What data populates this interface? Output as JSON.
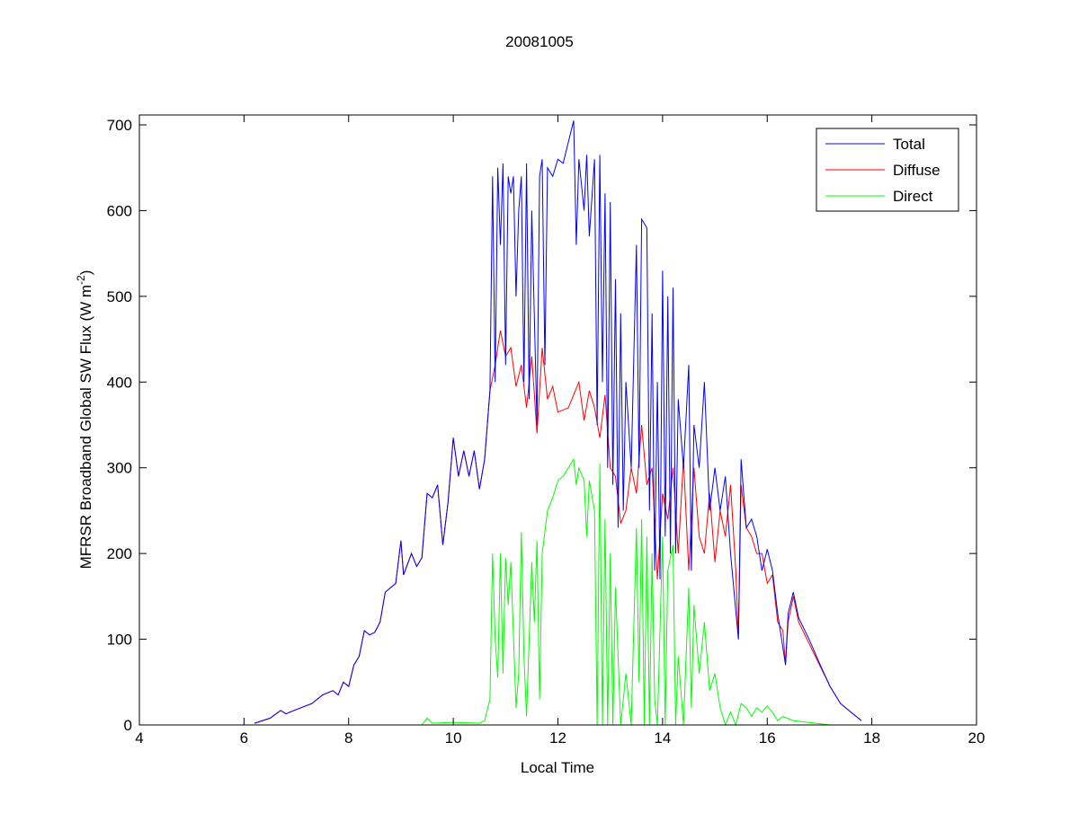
{
  "chart_data": {
    "type": "line",
    "title": "20081005",
    "xlabel": "Local Time",
    "ylabel": {
      "main": "MFRSR Broadband Global SW Flux (W m",
      "sup": "-2",
      "end": ")"
    },
    "xlim": [
      4,
      20
    ],
    "ylim": [
      0,
      700
    ],
    "xticks": [
      4,
      6,
      8,
      10,
      12,
      14,
      16,
      18,
      20
    ],
    "yticks": [
      0,
      100,
      200,
      300,
      400,
      500,
      600,
      700
    ],
    "grid": false,
    "legend_position": "top-right",
    "series": [
      {
        "name": "Total",
        "color": "#0000ff",
        "points": [
          [
            6.2,
            2
          ],
          [
            6.5,
            8
          ],
          [
            6.7,
            17
          ],
          [
            6.8,
            13
          ],
          [
            7,
            18
          ],
          [
            7.3,
            25
          ],
          [
            7.5,
            35
          ],
          [
            7.7,
            40
          ],
          [
            7.8,
            35
          ],
          [
            7.9,
            50
          ],
          [
            8,
            45
          ],
          [
            8.1,
            70
          ],
          [
            8.2,
            80
          ],
          [
            8.3,
            110
          ],
          [
            8.4,
            105
          ],
          [
            8.5,
            108
          ],
          [
            8.6,
            120
          ],
          [
            8.7,
            155
          ],
          [
            8.8,
            160
          ],
          [
            8.9,
            165
          ],
          [
            9,
            215
          ],
          [
            9.05,
            175
          ],
          [
            9.2,
            200
          ],
          [
            9.3,
            185
          ],
          [
            9.4,
            195
          ],
          [
            9.5,
            270
          ],
          [
            9.6,
            265
          ],
          [
            9.7,
            280
          ],
          [
            9.8,
            210
          ],
          [
            9.9,
            260
          ],
          [
            10,
            335
          ],
          [
            10.1,
            290
          ],
          [
            10.2,
            320
          ],
          [
            10.3,
            290
          ],
          [
            10.4,
            320
          ],
          [
            10.5,
            275
          ],
          [
            10.6,
            310
          ],
          [
            10.7,
            390
          ],
          [
            10.75,
            640
          ],
          [
            10.8,
            400
          ],
          [
            10.85,
            650
          ],
          [
            10.9,
            560
          ],
          [
            10.95,
            655
          ],
          [
            11,
            420
          ],
          [
            11.05,
            640
          ],
          [
            11.1,
            620
          ],
          [
            11.15,
            640
          ],
          [
            11.2,
            500
          ],
          [
            11.25,
            600
          ],
          [
            11.3,
            640
          ],
          [
            11.35,
            400
          ],
          [
            11.4,
            655
          ],
          [
            11.45,
            380
          ],
          [
            11.5,
            600
          ],
          [
            11.6,
            350
          ],
          [
            11.65,
            640
          ],
          [
            11.7,
            660
          ],
          [
            11.75,
            420
          ],
          [
            11.8,
            650
          ],
          [
            11.9,
            640
          ],
          [
            12,
            660
          ],
          [
            12.1,
            655
          ],
          [
            12.2,
            680
          ],
          [
            12.3,
            705
          ],
          [
            12.35,
            560
          ],
          [
            12.4,
            660
          ],
          [
            12.5,
            600
          ],
          [
            12.55,
            665
          ],
          [
            12.6,
            570
          ],
          [
            12.7,
            660
          ],
          [
            12.75,
            350
          ],
          [
            12.8,
            665
          ],
          [
            12.85,
            400
          ],
          [
            12.9,
            620
          ],
          [
            12.95,
            300
          ],
          [
            13,
            610
          ],
          [
            13.05,
            280
          ],
          [
            13.1,
            520
          ],
          [
            13.15,
            230
          ],
          [
            13.2,
            480
          ],
          [
            13.25,
            250
          ],
          [
            13.3,
            400
          ],
          [
            13.4,
            300
          ],
          [
            13.5,
            560
          ],
          [
            13.55,
            300
          ],
          [
            13.6,
            590
          ],
          [
            13.7,
            580
          ],
          [
            13.75,
            250
          ],
          [
            13.8,
            480
          ],
          [
            13.85,
            180
          ],
          [
            13.9,
            400
          ],
          [
            13.95,
            170
          ],
          [
            14,
            530
          ],
          [
            14.05,
            220
          ],
          [
            14.1,
            500
          ],
          [
            14.15,
            200
          ],
          [
            14.2,
            510
          ],
          [
            14.25,
            200
          ],
          [
            14.3,
            380
          ],
          [
            14.4,
            300
          ],
          [
            14.5,
            420
          ],
          [
            14.55,
            180
          ],
          [
            14.6,
            350
          ],
          [
            14.7,
            300
          ],
          [
            14.8,
            400
          ],
          [
            14.9,
            250
          ],
          [
            15,
            300
          ],
          [
            15.1,
            250
          ],
          [
            15.2,
            290
          ],
          [
            15.3,
            200
          ],
          [
            15.45,
            100
          ],
          [
            15.5,
            310
          ],
          [
            15.6,
            230
          ],
          [
            15.7,
            240
          ],
          [
            15.8,
            220
          ],
          [
            15.9,
            180
          ],
          [
            16,
            205
          ],
          [
            16.1,
            180
          ],
          [
            16.2,
            130
          ],
          [
            16.35,
            70
          ],
          [
            16.4,
            130
          ],
          [
            16.5,
            155
          ],
          [
            16.6,
            125
          ],
          [
            16.8,
            100
          ],
          [
            17,
            72
          ],
          [
            17.2,
            45
          ],
          [
            17.4,
            25
          ],
          [
            17.6,
            15
          ],
          [
            17.8,
            5
          ]
        ]
      },
      {
        "name": "Diffuse",
        "color": "#ff0000",
        "points": [
          [
            6.2,
            2
          ],
          [
            6.5,
            8
          ],
          [
            6.7,
            17
          ],
          [
            6.8,
            13
          ],
          [
            7,
            18
          ],
          [
            7.3,
            25
          ],
          [
            7.5,
            35
          ],
          [
            7.7,
            40
          ],
          [
            7.8,
            35
          ],
          [
            7.9,
            50
          ],
          [
            8,
            45
          ],
          [
            8.1,
            70
          ],
          [
            8.2,
            80
          ],
          [
            8.3,
            110
          ],
          [
            8.4,
            105
          ],
          [
            8.5,
            108
          ],
          [
            8.6,
            120
          ],
          [
            8.7,
            155
          ],
          [
            8.8,
            160
          ],
          [
            8.9,
            165
          ],
          [
            9,
            215
          ],
          [
            9.05,
            175
          ],
          [
            9.2,
            200
          ],
          [
            9.3,
            185
          ],
          [
            9.4,
            195
          ],
          [
            9.5,
            270
          ],
          [
            9.6,
            265
          ],
          [
            9.7,
            280
          ],
          [
            9.8,
            210
          ],
          [
            9.9,
            260
          ],
          [
            10,
            335
          ],
          [
            10.1,
            290
          ],
          [
            10.2,
            320
          ],
          [
            10.3,
            290
          ],
          [
            10.4,
            320
          ],
          [
            10.5,
            275
          ],
          [
            10.6,
            310
          ],
          [
            10.7,
            390
          ],
          [
            10.8,
            420
          ],
          [
            10.9,
            460
          ],
          [
            11,
            430
          ],
          [
            11.1,
            440
          ],
          [
            11.2,
            395
          ],
          [
            11.3,
            420
          ],
          [
            11.4,
            370
          ],
          [
            11.5,
            430
          ],
          [
            11.6,
            340
          ],
          [
            11.7,
            440
          ],
          [
            11.8,
            380
          ],
          [
            11.9,
            395
          ],
          [
            12,
            365
          ],
          [
            12.2,
            370
          ],
          [
            12.4,
            400
          ],
          [
            12.5,
            355
          ],
          [
            12.6,
            390
          ],
          [
            12.7,
            370
          ],
          [
            12.8,
            335
          ],
          [
            12.9,
            385
          ],
          [
            13,
            300
          ],
          [
            13.1,
            290
          ],
          [
            13.2,
            235
          ],
          [
            13.3,
            250
          ],
          [
            13.4,
            300
          ],
          [
            13.5,
            270
          ],
          [
            13.6,
            350
          ],
          [
            13.7,
            280
          ],
          [
            13.8,
            300
          ],
          [
            13.9,
            170
          ],
          [
            14,
            270
          ],
          [
            14.1,
            240
          ],
          [
            14.2,
            300
          ],
          [
            14.3,
            200
          ],
          [
            14.4,
            310
          ],
          [
            14.5,
            180
          ],
          [
            14.6,
            300
          ],
          [
            14.7,
            220
          ],
          [
            14.8,
            200
          ],
          [
            14.9,
            270
          ],
          [
            15,
            190
          ],
          [
            15.1,
            250
          ],
          [
            15.2,
            220
          ],
          [
            15.3,
            280
          ],
          [
            15.4,
            180
          ],
          [
            15.45,
            100
          ],
          [
            15.5,
            280
          ],
          [
            15.6,
            230
          ],
          [
            15.7,
            220
          ],
          [
            15.8,
            200
          ],
          [
            15.9,
            200
          ],
          [
            16,
            165
          ],
          [
            16.1,
            175
          ],
          [
            16.2,
            120
          ],
          [
            16.3,
            110
          ],
          [
            16.35,
            70
          ],
          [
            16.4,
            120
          ],
          [
            16.5,
            150
          ],
          [
            16.6,
            120
          ],
          [
            16.8,
            95
          ],
          [
            17,
            70
          ],
          [
            17.2,
            45
          ],
          [
            17.4,
            25
          ],
          [
            17.6,
            15
          ],
          [
            17.8,
            5
          ]
        ]
      },
      {
        "name": "Direct",
        "color": "#00ff00",
        "points": [
          [
            6.2,
            0
          ],
          [
            9.4,
            0
          ],
          [
            9.5,
            8
          ],
          [
            9.6,
            2
          ],
          [
            10,
            3
          ],
          [
            10.5,
            2
          ],
          [
            10.6,
            5
          ],
          [
            10.7,
            30
          ],
          [
            10.75,
            200
          ],
          [
            10.8,
            100
          ],
          [
            10.85,
            55
          ],
          [
            10.9,
            200
          ],
          [
            10.95,
            60
          ],
          [
            11,
            195
          ],
          [
            11.05,
            140
          ],
          [
            11.1,
            190
          ],
          [
            11.2,
            20
          ],
          [
            11.25,
            60
          ],
          [
            11.3,
            225
          ],
          [
            11.35,
            80
          ],
          [
            11.4,
            10
          ],
          [
            11.5,
            190
          ],
          [
            11.55,
            120
          ],
          [
            11.6,
            215
          ],
          [
            11.65,
            30
          ],
          [
            11.7,
            200
          ],
          [
            11.8,
            250
          ],
          [
            11.9,
            265
          ],
          [
            12,
            285
          ],
          [
            12.1,
            290
          ],
          [
            12.2,
            300
          ],
          [
            12.3,
            310
          ],
          [
            12.35,
            280
          ],
          [
            12.4,
            300
          ],
          [
            12.5,
            285
          ],
          [
            12.55,
            220
          ],
          [
            12.6,
            285
          ],
          [
            12.7,
            250
          ],
          [
            12.75,
            0
          ],
          [
            12.8,
            305
          ],
          [
            12.85,
            0
          ],
          [
            12.9,
            240
          ],
          [
            12.95,
            0
          ],
          [
            13,
            200
          ],
          [
            13.05,
            0
          ],
          [
            13.1,
            160
          ],
          [
            13.2,
            0
          ],
          [
            13.3,
            60
          ],
          [
            13.4,
            0
          ],
          [
            13.5,
            230
          ],
          [
            13.55,
            50
          ],
          [
            13.6,
            240
          ],
          [
            13.65,
            0
          ],
          [
            13.7,
            220
          ],
          [
            13.75,
            0
          ],
          [
            13.8,
            200
          ],
          [
            13.85,
            30
          ],
          [
            13.9,
            0
          ],
          [
            14,
            220
          ],
          [
            14.05,
            0
          ],
          [
            14.1,
            180
          ],
          [
            14.2,
            210
          ],
          [
            14.25,
            0
          ],
          [
            14.3,
            80
          ],
          [
            14.4,
            0
          ],
          [
            14.5,
            160
          ],
          [
            14.55,
            20
          ],
          [
            14.6,
            140
          ],
          [
            14.7,
            60
          ],
          [
            14.8,
            120
          ],
          [
            14.9,
            40
          ],
          [
            15,
            60
          ],
          [
            15.1,
            20
          ],
          [
            15.2,
            0
          ],
          [
            15.3,
            15
          ],
          [
            15.4,
            0
          ],
          [
            15.5,
            25
          ],
          [
            15.6,
            20
          ],
          [
            15.7,
            10
          ],
          [
            15.8,
            20
          ],
          [
            15.9,
            15
          ],
          [
            16,
            22
          ],
          [
            16.1,
            15
          ],
          [
            16.2,
            5
          ],
          [
            16.3,
            10
          ],
          [
            16.5,
            5
          ],
          [
            17.2,
            0
          ]
        ]
      }
    ]
  }
}
